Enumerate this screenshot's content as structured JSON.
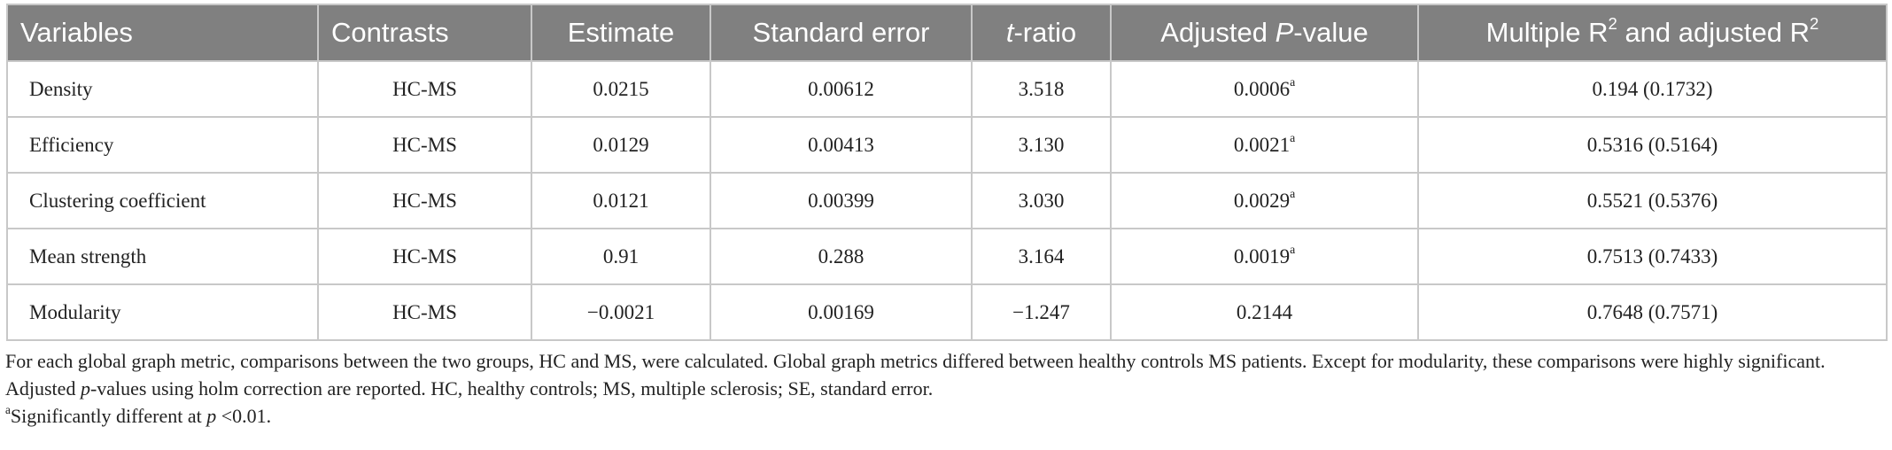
{
  "table": {
    "headers": [
      [
        "Variables"
      ],
      [
        "Contrasts"
      ],
      [
        "Estimate"
      ],
      [
        "Standard error"
      ],
      [
        "t",
        "-ratio"
      ],
      [
        "Adjusted ",
        "P",
        "-value"
      ],
      [
        "Multiple R",
        "2",
        " and adjusted R",
        "2"
      ]
    ],
    "rows": [
      [
        "Density",
        "HC-MS",
        "0.0215",
        "0.00612",
        "3.518",
        [
          "0.0006",
          "a"
        ],
        "0.194 (0.1732)"
      ],
      [
        "Efficiency",
        "HC-MS",
        "0.0129",
        "0.00413",
        "3.130",
        [
          "0.0021",
          "a"
        ],
        "0.5316 (0.5164)"
      ],
      [
        "Clustering coefficient",
        "HC-MS",
        "0.0121",
        "0.00399",
        "3.030",
        [
          "0.0029",
          "a"
        ],
        "0.5521 (0.5376)"
      ],
      [
        "Mean strength",
        "HC-MS",
        "0.91",
        "0.288",
        "3.164",
        [
          "0.0019",
          "a"
        ],
        "0.7513 (0.7433)"
      ],
      [
        "Modularity",
        "HC-MS",
        "−0.0021",
        "0.00169",
        "−1.247",
        [
          "0.2144"
        ],
        "0.7648 (0.7571)"
      ]
    ]
  },
  "footnotes": [
    [
      "For each global graph metric, comparisons between the two groups, HC and MS, were calculated. Global graph metrics differed between healthy controls MS patients. Except for modularity, these comparisons were highly significant. Adjusted ",
      "p",
      "-values using holm correction are reported. HC, healthy controls; MS, multiple sclerosis; SE, standard error."
    ],
    [
      "a",
      "Significantly different at ",
      "p",
      " <0.01."
    ]
  ]
}
